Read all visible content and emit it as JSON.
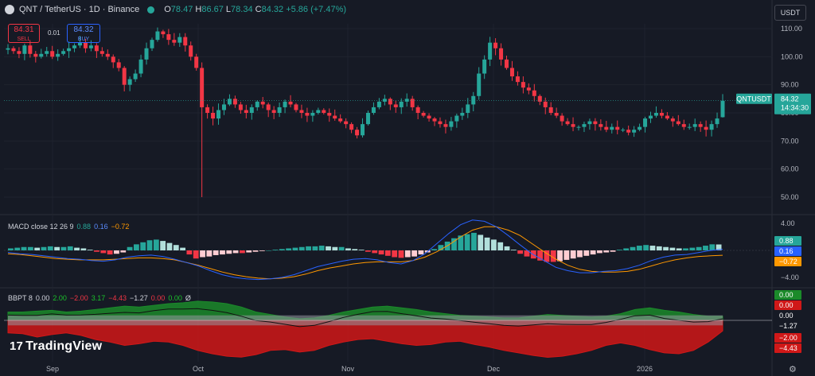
{
  "header": {
    "symbol": "QNT / TetherUS · 1D · Binance",
    "o_label": "O",
    "o": "78.47",
    "h_label": "H",
    "h": "86.67",
    "l_label": "L",
    "l": "78.34",
    "c_label": "C",
    "c": "84.32",
    "change": "+5.86 (+7.47%)"
  },
  "trade": {
    "sell_price": "84.31",
    "sell_label": "SELL",
    "spread": "0.01",
    "buy_price": "84.32",
    "buy_label": "BUY"
  },
  "currency": "USDT",
  "price_tag": {
    "symbol": "QNTUSDT",
    "price": "84.32",
    "countdown": "14:34:30"
  },
  "macd_label": {
    "name": "MACD close 12 26 9",
    "hist": "0.88",
    "macd": "0.16",
    "signal": "−0.72"
  },
  "bbpt_label": {
    "name": "BBPT 8",
    "v1": "0.00",
    "v2": "2.00",
    "v3": "−2.00",
    "v4": "3.17",
    "v5": "−4.43",
    "v6": "−1.27",
    "v7": "0.00",
    "v8": "0.00",
    "v9": "Ø"
  },
  "logo": "TradingView",
  "colors": {
    "up": "#26a69a",
    "down": "#f23645",
    "macd": "#2962ff",
    "signal": "#ff9800",
    "bull": "#1b8a2a",
    "bear": "#d01818"
  },
  "chart_data": [
    {
      "type": "candlestick",
      "title": "QNT / TetherUS · 1D · Binance",
      "y_ticks": [
        50,
        60,
        70,
        80,
        90,
        100,
        110
      ],
      "ylim": [
        45,
        115
      ],
      "x_ticks": [
        "Sep",
        "Oct",
        "Nov",
        "Dec",
        "2026"
      ],
      "close_path": [
        103,
        102,
        101,
        104,
        101,
        100,
        101,
        102,
        100,
        101,
        102,
        103,
        104,
        105,
        103,
        104,
        102,
        101,
        100,
        98,
        96,
        90,
        92,
        94,
        99,
        103,
        106,
        109,
        108,
        106,
        105,
        107,
        104,
        100,
        96,
        82,
        80,
        78,
        81,
        83,
        85,
        83,
        81,
        80,
        82,
        84,
        83,
        81,
        80,
        82,
        84,
        83,
        81,
        80,
        79,
        80,
        81,
        80,
        79,
        78,
        77,
        76,
        74,
        72,
        76,
        80,
        82,
        84,
        85,
        83,
        82,
        84,
        85,
        82,
        80,
        79,
        78,
        77,
        76,
        75,
        77,
        79,
        80,
        83,
        86,
        94,
        99,
        105,
        103,
        99,
        96,
        93,
        91,
        89,
        88,
        86,
        84,
        82,
        80,
        79,
        77,
        76,
        75,
        75,
        76,
        77,
        76,
        75,
        74,
        75,
        74,
        74,
        73,
        74,
        75,
        78,
        79,
        80,
        79,
        78,
        77,
        76,
        75,
        75,
        76,
        75,
        74,
        76,
        78,
        84.32
      ],
      "last": {
        "open": 78.47,
        "high": 86.67,
        "low": 78.34,
        "close": 84.32
      },
      "spike_low": 50
    },
    {
      "type": "line",
      "title": "MACD close 12 26 9",
      "y_ticks": [
        4.0,
        -4.0
      ],
      "ylim": [
        -5.2,
        5.2
      ],
      "series": [
        {
          "name": "MACD",
          "values": [
            -1.2,
            -1.5,
            -2.0,
            -3.5,
            -4.2,
            -4.5,
            -4.3,
            -3.5,
            -1.8,
            0.16
          ]
        },
        {
          "name": "Signal",
          "values": [
            -0.6,
            -1.0,
            -1.5,
            -2.5,
            -3.5,
            -4.0,
            -4.2,
            -3.9,
            -2.5,
            -0.72
          ]
        },
        {
          "name": "Histogram",
          "values": [
            0.5,
            0.5,
            -0.5,
            -1.0,
            -0.7,
            -0.5,
            -0.3,
            0.4,
            0.7,
            0.88
          ]
        }
      ],
      "macd_peak": 4.5
    },
    {
      "type": "area",
      "title": "BBPT 8",
      "y_ticks": [
        0.0
      ],
      "series": [
        {
          "name": "Bull",
          "values": [
            1.0,
            1.0,
            1.2,
            1.5,
            2.0,
            2.2,
            2.3,
            1.8,
            0.7,
            0.3,
            0.2,
            0.5,
            1.2,
            1.6,
            1.5,
            1.3,
            0.8,
            0.5,
            0.4,
            0.3,
            0.5,
            0.7,
            0.5,
            1.3,
            1.0
          ]
        },
        {
          "name": "Bear",
          "values": [
            -1.5,
            -2.0,
            -1.5,
            -2.5,
            -3.0,
            -2.7,
            -4.0,
            -4.43,
            -3.5,
            -3.8,
            -2.5,
            -2.0,
            -2.5,
            -3.0,
            -2.8,
            -3.0,
            -3.3,
            -4.0,
            -4.2,
            -3.8,
            -2.5,
            -3.0,
            -3.5,
            -4.0,
            -1.27
          ]
        }
      ],
      "axis_labels": [
        "0.00",
        "0.00",
        "0.00",
        "−1.27",
        "−2.00",
        "−4.43"
      ]
    }
  ]
}
